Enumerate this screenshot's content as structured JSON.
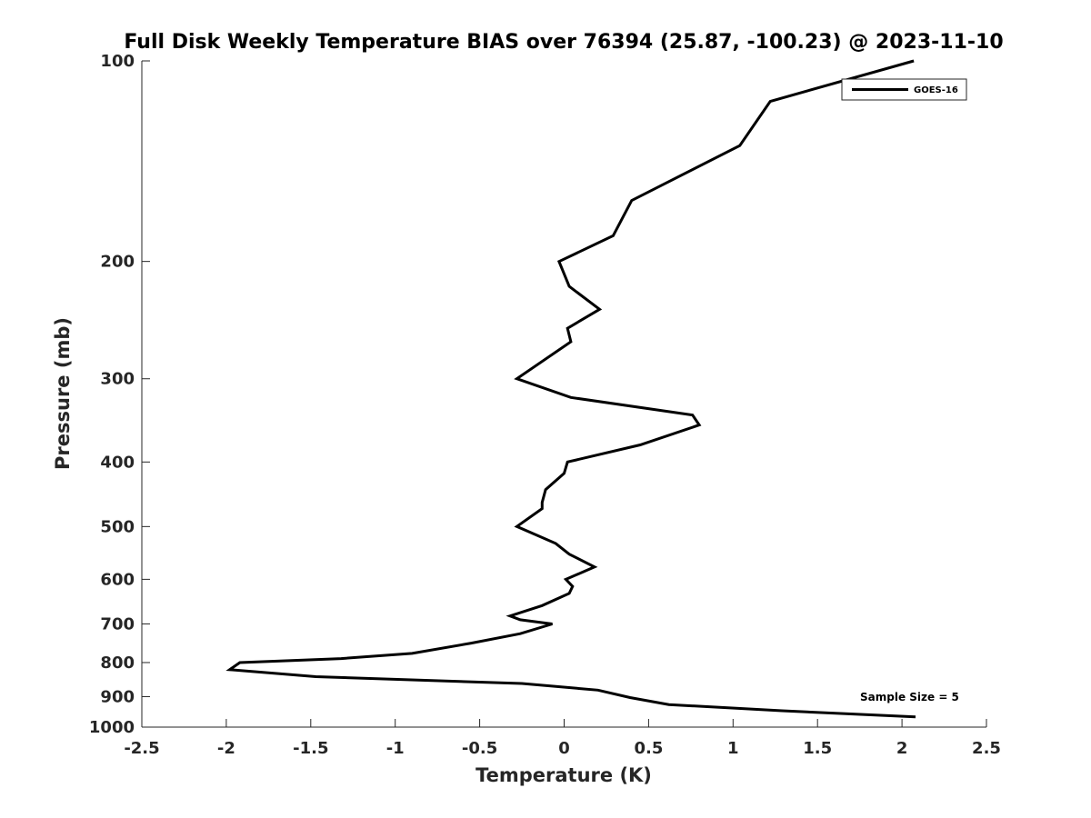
{
  "chart_data": {
    "type": "line",
    "title": "Full Disk Weekly Temperature BIAS over 76394 (25.87, -100.23) @ 2023-11-10",
    "xlabel": "Temperature (K)",
    "ylabel": "Pressure (mb)",
    "xlim": [
      -2.5,
      2.5
    ],
    "ylim": [
      1000,
      100
    ],
    "y_scale": "log",
    "y_reversed": true,
    "grid": false,
    "legend_position": "top-right",
    "x_ticks": [
      -2.5,
      -2,
      -1.5,
      -1,
      -0.5,
      0,
      0.5,
      1,
      1.5,
      2,
      2.5
    ],
    "x_tick_labels": [
      "-2.5",
      "-2",
      "-1.5",
      "-1",
      "-0.5",
      "0",
      "0.5",
      "1",
      "1.5",
      "2",
      "2.5"
    ],
    "y_ticks": [
      100,
      200,
      300,
      400,
      500,
      600,
      700,
      800,
      900,
      1000
    ],
    "y_tick_labels": [
      "100",
      "200",
      "300",
      "400",
      "500",
      "600",
      "700",
      "800",
      "900",
      "1000"
    ],
    "annotation": "Sample Size = 5",
    "series": [
      {
        "name": "GOES-16",
        "color": "#000000",
        "x": [
          2.07,
          1.22,
          1.04,
          0.4,
          0.29,
          -0.03,
          0.03,
          0.21,
          0.02,
          0.04,
          -0.28,
          0.04,
          0.76,
          0.8,
          0.45,
          0.02,
          0.0,
          -0.11,
          -0.13,
          -0.13,
          -0.28,
          -0.05,
          0.03,
          0.18,
          0.01,
          0.05,
          0.03,
          -0.13,
          -0.32,
          -0.26,
          -0.07,
          -0.26,
          -0.55,
          -0.9,
          -1.32,
          -1.92,
          -1.98,
          -1.47,
          -0.25,
          0.2,
          0.39,
          0.62,
          1.29,
          2.08
        ],
        "y": [
          100,
          115,
          134,
          162,
          183,
          200,
          218,
          236,
          252,
          264,
          300,
          320,
          340,
          352,
          377,
          400,
          416,
          440,
          460,
          470,
          500,
          530,
          550,
          575,
          600,
          615,
          630,
          657,
          681,
          690,
          700,
          724,
          748,
          775,
          789,
          800,
          820,
          840,
          860,
          880,
          903,
          925,
          945,
          965
        ]
      }
    ]
  }
}
